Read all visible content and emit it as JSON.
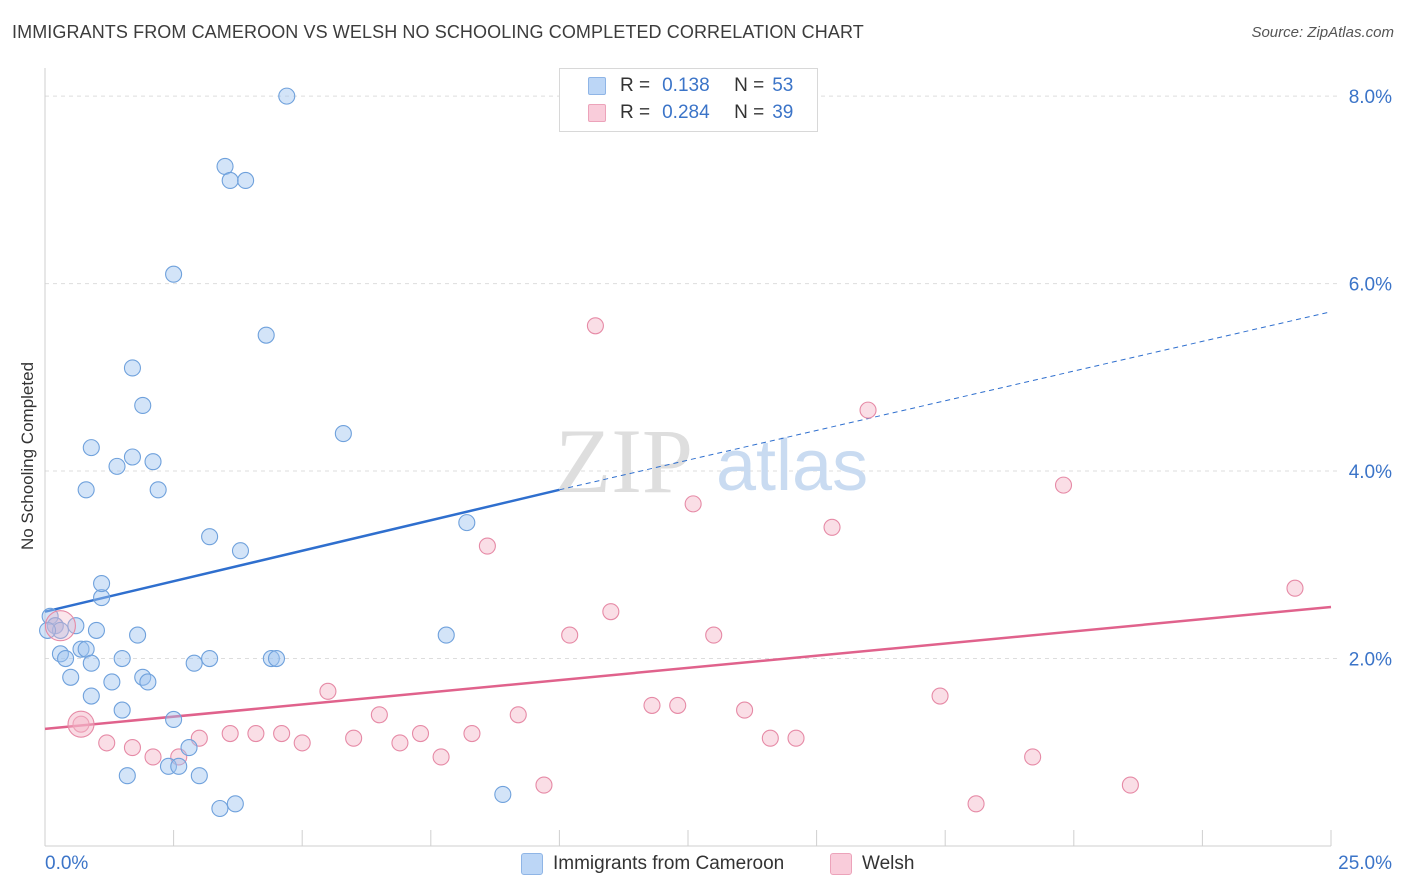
{
  "title": "IMMIGRANTS FROM CAMEROON VS WELSH NO SCHOOLING COMPLETED CORRELATION CHART",
  "source": "Source: ZipAtlas.com",
  "watermark": {
    "zip": "ZIP",
    "atlas": "atlas"
  },
  "legend": {
    "r_label": "R =",
    "n_label": "N =",
    "rows": [
      {
        "r": "0.138",
        "n": "53",
        "color": "#9dc3f0"
      },
      {
        "r": "0.284",
        "n": "39",
        "color": "#f4b6c8"
      }
    ]
  },
  "series_labels": [
    "Immigrants from Cameroon",
    "Welsh"
  ],
  "chart_data": {
    "type": "scatter",
    "title": "IMMIGRANTS FROM CAMEROON VS WELSH NO SCHOOLING COMPLETED CORRELATION CHART",
    "xlabel": "",
    "ylabel": "No Schooling Completed",
    "xlim": [
      0,
      25
    ],
    "ylim": [
      0,
      8.3
    ],
    "x_tick_labels": [
      "0.0%",
      "25.0%"
    ],
    "y_ticks": [
      2,
      4,
      6,
      8
    ],
    "y_tick_labels": [
      "2.0%",
      "4.0%",
      "6.0%",
      "8.0%"
    ],
    "grid": true,
    "legend_position": "top-center",
    "series": [
      {
        "name": "Immigrants from Cameroon",
        "color": "#9dc3f0",
        "stroke": "#6fa1dc",
        "trend_color": "#2f6fce",
        "trend": {
          "x0": 0,
          "y0": 2.5,
          "x1": 10,
          "y1": 3.8,
          "dashed_to_x": 25,
          "dashed_to_y": 5.7
        },
        "points": [
          [
            0.1,
            2.45
          ],
          [
            0.2,
            2.35
          ],
          [
            0.3,
            2.3
          ],
          [
            0.3,
            2.05
          ],
          [
            0.4,
            2.0
          ],
          [
            0.5,
            1.8
          ],
          [
            0.6,
            2.35
          ],
          [
            0.7,
            2.1
          ],
          [
            0.8,
            2.1
          ],
          [
            0.8,
            3.8
          ],
          [
            0.9,
            1.6
          ],
          [
            0.9,
            1.95
          ],
          [
            0.9,
            4.25
          ],
          [
            1.0,
            2.3
          ],
          [
            1.1,
            2.65
          ],
          [
            1.1,
            2.8
          ],
          [
            1.3,
            1.75
          ],
          [
            1.4,
            4.05
          ],
          [
            1.5,
            2.0
          ],
          [
            1.5,
            1.45
          ],
          [
            1.6,
            0.75
          ],
          [
            1.7,
            5.1
          ],
          [
            1.7,
            4.15
          ],
          [
            1.8,
            2.25
          ],
          [
            1.9,
            1.8
          ],
          [
            1.9,
            4.7
          ],
          [
            2.0,
            1.75
          ],
          [
            2.1,
            4.1
          ],
          [
            2.2,
            3.8
          ],
          [
            2.4,
            0.85
          ],
          [
            2.5,
            6.1
          ],
          [
            2.5,
            1.35
          ],
          [
            2.6,
            0.85
          ],
          [
            2.8,
            1.05
          ],
          [
            2.9,
            1.95
          ],
          [
            3.0,
            0.75
          ],
          [
            3.2,
            3.3
          ],
          [
            3.2,
            2.0
          ],
          [
            3.4,
            0.4
          ],
          [
            3.5,
            7.25
          ],
          [
            3.6,
            7.1
          ],
          [
            3.7,
            0.45
          ],
          [
            3.8,
            3.15
          ],
          [
            3.9,
            7.1
          ],
          [
            4.3,
            5.45
          ],
          [
            4.4,
            2.0
          ],
          [
            4.5,
            2.0
          ],
          [
            4.7,
            8.0
          ],
          [
            5.8,
            4.4
          ],
          [
            7.8,
            2.25
          ],
          [
            8.2,
            3.45
          ],
          [
            8.9,
            0.55
          ],
          [
            0.05,
            2.3
          ]
        ]
      },
      {
        "name": "Welsh",
        "color": "#f4b6c8",
        "stroke": "#e68aa6",
        "trend_color": "#e0628c",
        "trend": {
          "x0": 0,
          "y0": 1.25,
          "x1": 25,
          "y1": 2.55
        },
        "points": [
          [
            0.2,
            2.35
          ],
          [
            0.7,
            1.3
          ],
          [
            1.2,
            1.1
          ],
          [
            1.7,
            1.05
          ],
          [
            2.1,
            0.95
          ],
          [
            2.6,
            0.95
          ],
          [
            3.0,
            1.15
          ],
          [
            3.6,
            1.2
          ],
          [
            4.1,
            1.2
          ],
          [
            4.6,
            1.2
          ],
          [
            5.0,
            1.1
          ],
          [
            5.5,
            1.65
          ],
          [
            6.0,
            1.15
          ],
          [
            6.5,
            1.4
          ],
          [
            6.9,
            1.1
          ],
          [
            7.3,
            1.2
          ],
          [
            7.7,
            0.95
          ],
          [
            8.3,
            1.2
          ],
          [
            8.6,
            3.2
          ],
          [
            9.2,
            1.4
          ],
          [
            9.7,
            0.65
          ],
          [
            10.2,
            2.25
          ],
          [
            10.7,
            5.55
          ],
          [
            11.0,
            2.5
          ],
          [
            11.8,
            1.5
          ],
          [
            12.3,
            1.5
          ],
          [
            12.6,
            3.65
          ],
          [
            13.0,
            2.25
          ],
          [
            13.6,
            1.45
          ],
          [
            14.1,
            1.15
          ],
          [
            14.6,
            1.15
          ],
          [
            15.3,
            3.4
          ],
          [
            16.0,
            4.65
          ],
          [
            17.4,
            1.6
          ],
          [
            18.1,
            0.45
          ],
          [
            19.2,
            0.95
          ],
          [
            19.8,
            3.85
          ],
          [
            21.1,
            0.65
          ],
          [
            24.3,
            2.75
          ]
        ]
      }
    ]
  }
}
